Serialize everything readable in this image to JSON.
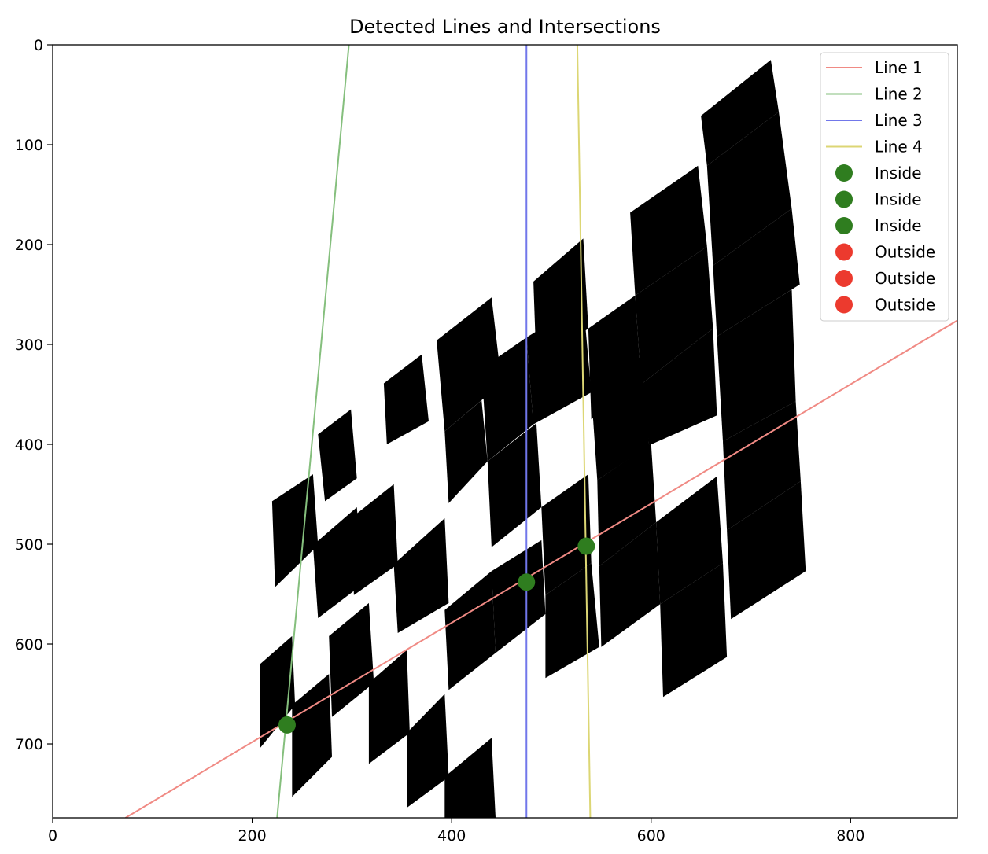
{
  "chart_data": {
    "type": "scatter",
    "title": "Detected Lines and Intersections",
    "xlabel": "",
    "ylabel": "",
    "xlim": [
      0,
      907
    ],
    "ylim": [
      774,
      0
    ],
    "y_inverted": true,
    "x_ticks": [
      0,
      200,
      400,
      600,
      800
    ],
    "y_ticks": [
      0,
      100,
      200,
      300,
      400,
      500,
      600,
      700
    ],
    "grid": false,
    "legend_position": "top-right",
    "background_image": {
      "description_colors": {
        "board_background": "#fafafa",
        "board_white": "#ffffff",
        "square": "#000000"
      },
      "board_outline": [
        [
          0,
          255
        ],
        [
          0,
          774
        ],
        [
          907,
          774
        ],
        [
          907,
          0
        ],
        [
          0,
          0
        ]
      ],
      "squares": [
        [
          [
            650,
            71
          ],
          [
            720,
            15
          ],
          [
            728,
            67
          ],
          [
            656,
            121
          ]
        ],
        [
          [
            579,
            168
          ],
          [
            647,
            121
          ],
          [
            656,
            202
          ],
          [
            584,
            251
          ]
        ],
        [
          [
            656,
            121
          ],
          [
            728,
            67
          ],
          [
            741,
            164
          ],
          [
            662,
            221
          ]
        ],
        [
          [
            482,
            237
          ],
          [
            532,
            194
          ],
          [
            537,
            284
          ],
          [
            485,
            322
          ]
        ],
        [
          [
            537,
            284
          ],
          [
            584,
            251
          ],
          [
            590,
            340
          ],
          [
            540,
            375
          ]
        ],
        [
          [
            584,
            251
          ],
          [
            656,
            202
          ],
          [
            662,
            284
          ],
          [
            590,
            340
          ]
        ],
        [
          [
            662,
            221
          ],
          [
            741,
            164
          ],
          [
            749,
            240
          ],
          [
            666,
            292
          ]
        ],
        [
          [
            385,
            296
          ],
          [
            440,
            253
          ],
          [
            450,
            339
          ],
          [
            393,
            387
          ]
        ],
        [
          [
            430,
            324
          ],
          [
            475,
            293
          ],
          [
            482,
            380
          ],
          [
            436,
            417
          ]
        ],
        [
          [
            475,
            293
          ],
          [
            532,
            258
          ],
          [
            540,
            348
          ],
          [
            482,
            380
          ]
        ],
        [
          [
            540,
            348
          ],
          [
            590,
            312
          ],
          [
            598,
            401
          ],
          [
            546,
            436
          ]
        ],
        [
          [
            590,
            340
          ],
          [
            662,
            284
          ],
          [
            666,
            371
          ],
          [
            598,
            401
          ]
        ],
        [
          [
            666,
            292
          ],
          [
            741,
            245
          ],
          [
            745,
            357
          ],
          [
            672,
            397
          ]
        ],
        [
          [
            266,
            390
          ],
          [
            299,
            365
          ],
          [
            305,
            434
          ],
          [
            273,
            457
          ]
        ],
        [
          [
            332,
            339
          ],
          [
            370,
            310
          ],
          [
            377,
            377
          ],
          [
            335,
            400
          ]
        ],
        [
          [
            393,
            387
          ],
          [
            430,
            356
          ],
          [
            436,
            417
          ],
          [
            397,
            459
          ]
        ],
        [
          [
            436,
            417
          ],
          [
            485,
            379
          ],
          [
            490,
            463
          ],
          [
            440,
            503
          ]
        ],
        [
          [
            490,
            463
          ],
          [
            537,
            430
          ],
          [
            540,
            519
          ],
          [
            494,
            551
          ]
        ],
        [
          [
            546,
            436
          ],
          [
            600,
            399
          ],
          [
            605,
            478
          ],
          [
            548,
            522
          ]
        ],
        [
          [
            605,
            478
          ],
          [
            666,
            432
          ],
          [
            672,
            519
          ],
          [
            609,
            560
          ]
        ],
        [
          [
            672,
            397
          ],
          [
            745,
            357
          ],
          [
            750,
            437
          ],
          [
            676,
            486
          ]
        ],
        [
          [
            220,
            457
          ],
          [
            261,
            430
          ],
          [
            266,
            501
          ],
          [
            223,
            543
          ]
        ],
        [
          [
            261,
            501
          ],
          [
            305,
            463
          ],
          [
            311,
            540
          ],
          [
            266,
            574
          ]
        ],
        [
          [
            299,
            474
          ],
          [
            342,
            440
          ],
          [
            346,
            520
          ],
          [
            302,
            551
          ]
        ],
        [
          [
            342,
            520
          ],
          [
            393,
            474
          ],
          [
            397,
            559
          ],
          [
            346,
            589
          ]
        ],
        [
          [
            393,
            566
          ],
          [
            440,
            527
          ],
          [
            444,
            609
          ],
          [
            397,
            646
          ]
        ],
        [
          [
            440,
            527
          ],
          [
            490,
            496
          ],
          [
            494,
            570
          ],
          [
            444,
            609
          ]
        ],
        [
          [
            494,
            551
          ],
          [
            540,
            519
          ],
          [
            548,
            603
          ],
          [
            494,
            634
          ]
        ],
        [
          [
            548,
            522
          ],
          [
            605,
            478
          ],
          [
            609,
            560
          ],
          [
            550,
            603
          ]
        ],
        [
          [
            609,
            560
          ],
          [
            672,
            519
          ],
          [
            676,
            613
          ],
          [
            612,
            653
          ]
        ],
        [
          [
            676,
            486
          ],
          [
            750,
            437
          ],
          [
            755,
            527
          ],
          [
            680,
            575
          ]
        ],
        [
          [
            208,
            620
          ],
          [
            240,
            592
          ],
          [
            243,
            661
          ],
          [
            208,
            704
          ]
        ],
        [
          [
            240,
            661
          ],
          [
            277,
            630
          ],
          [
            280,
            713
          ],
          [
            240,
            753
          ]
        ],
        [
          [
            277,
            592
          ],
          [
            317,
            559
          ],
          [
            322,
            639
          ],
          [
            280,
            673
          ]
        ],
        [
          [
            317,
            639
          ],
          [
            355,
            606
          ],
          [
            358,
            689
          ],
          [
            317,
            720
          ]
        ],
        [
          [
            355,
            689
          ],
          [
            393,
            650
          ],
          [
            397,
            733
          ],
          [
            355,
            764
          ]
        ],
        [
          [
            393,
            733
          ],
          [
            440,
            694
          ],
          [
            444,
            774
          ],
          [
            393,
            774
          ]
        ]
      ]
    },
    "series": [
      {
        "name": "Line 1",
        "type": "line",
        "color": "#f08a84",
        "x": [
          73,
          907
        ],
        "y": [
          774,
          276
        ]
      },
      {
        "name": "Line 2",
        "type": "line",
        "color": "#85bf7d",
        "x": [
          297,
          225
        ],
        "y": [
          0,
          774
        ]
      },
      {
        "name": "Line 3",
        "type": "line",
        "color": "#7177ea",
        "x": [
          475,
          475
        ],
        "y": [
          0,
          774
        ]
      },
      {
        "name": "Line 4",
        "type": "line",
        "color": "#dcd674",
        "x": [
          526,
          539
        ],
        "y": [
          0,
          774
        ]
      },
      {
        "name": "Inside",
        "type": "scatter",
        "color": "#2f7d1f",
        "x": [
          235
        ],
        "y": [
          681
        ]
      },
      {
        "name": "Inside",
        "type": "scatter",
        "color": "#2f7d1f",
        "x": [
          475
        ],
        "y": [
          538
        ]
      },
      {
        "name": "Inside",
        "type": "scatter",
        "color": "#2f7d1f",
        "x": [
          535
        ],
        "y": [
          502
        ]
      },
      {
        "name": "Outside",
        "type": "scatter",
        "color": "#ec3a2e",
        "x": [],
        "y": []
      },
      {
        "name": "Outside",
        "type": "scatter",
        "color": "#ec3a2e",
        "x": [],
        "y": []
      },
      {
        "name": "Outside",
        "type": "scatter",
        "color": "#ec3a2e",
        "x": [],
        "y": []
      }
    ]
  }
}
